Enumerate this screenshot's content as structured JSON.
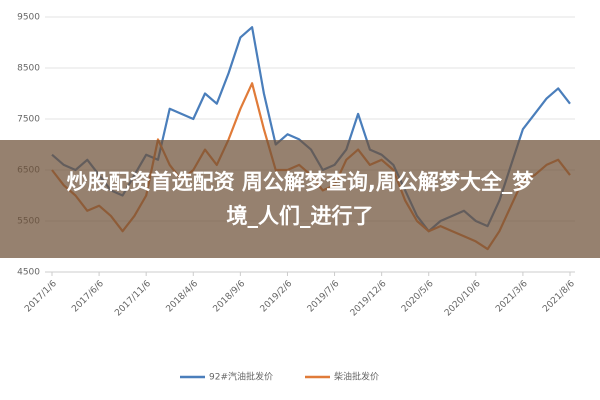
{
  "chart_data": {
    "type": "line",
    "categories": [
      "2017/1/6",
      null,
      null,
      null,
      "2017/6/6",
      null,
      null,
      null,
      "2017/11/6",
      null,
      null,
      null,
      "2018/4/6",
      null,
      null,
      null,
      "2018/9/6",
      null,
      null,
      null,
      "2019/2/6",
      null,
      null,
      null,
      "2019/7/6",
      null,
      null,
      null,
      "2019/12/6",
      null,
      null,
      null,
      "2020/5/6",
      null,
      null,
      null,
      "2020/10/6",
      null,
      null,
      null,
      "2021/3/6",
      null,
      null,
      null,
      "2021/8/6"
    ],
    "series": [
      {
        "name": "92#汽油批发价",
        "color": "#4a7ebb",
        "values": [
          6800,
          6600,
          6500,
          6700,
          6400,
          6100,
          6000,
          6400,
          6800,
          6700,
          7700,
          7600,
          7500,
          8000,
          7800,
          8400,
          9100,
          9300,
          8000,
          7000,
          7200,
          7100,
          6900,
          6500,
          6600,
          6900,
          7600,
          6900,
          6800,
          6600,
          6100,
          5600,
          5300,
          5500,
          5600,
          5700,
          5500,
          5400,
          5900,
          6600,
          7300,
          7600,
          7900,
          8100,
          7800
        ]
      },
      {
        "name": "柴油批发价",
        "color": "#e07b39",
        "values": [
          6500,
          6200,
          6000,
          5700,
          5800,
          5600,
          5300,
          5600,
          6000,
          7100,
          6600,
          6300,
          6500,
          6900,
          6600,
          7100,
          7700,
          8200,
          7300,
          6500,
          6500,
          6600,
          6400,
          6100,
          6200,
          6700,
          6900,
          6600,
          6700,
          6500,
          5900,
          5500,
          5300,
          5400,
          5300,
          5200,
          5100,
          4950,
          5300,
          5800,
          6300,
          6400,
          6600,
          6700,
          6400
        ]
      }
    ],
    "ylim": [
      4500,
      9500
    ],
    "yticks": [
      4500,
      5500,
      6500,
      7500,
      8500,
      9500
    ],
    "grid": true,
    "legend": "bottom"
  },
  "overlay": {
    "lines": [
      "炒股配资首选配资 周公解梦查询,周公解梦大全_梦",
      "境_人们_进行了"
    ]
  }
}
